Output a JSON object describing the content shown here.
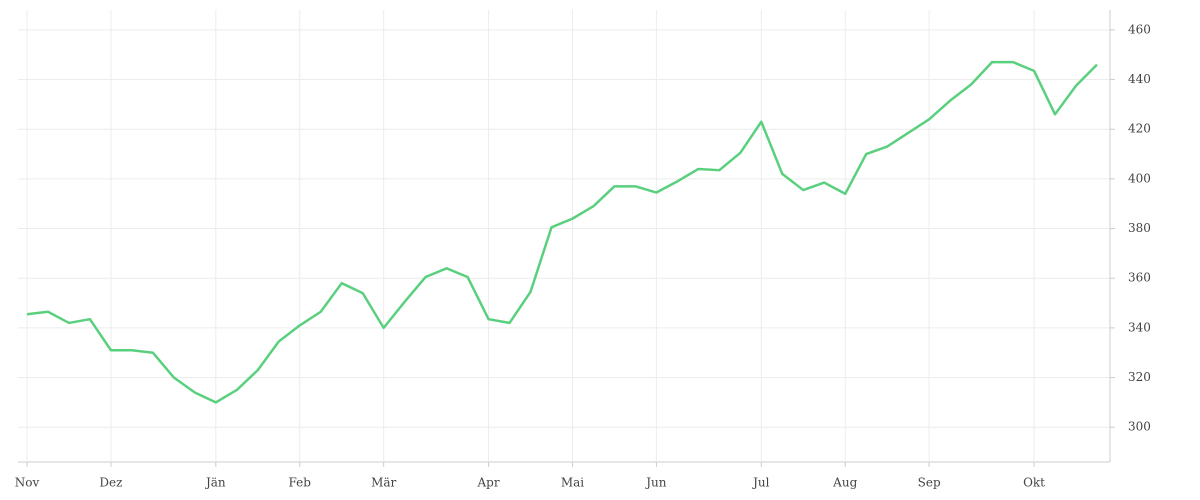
{
  "chart_data": {
    "type": "line",
    "categories": [
      "Nov",
      null,
      null,
      null,
      "Dez",
      null,
      null,
      null,
      null,
      "Jän",
      null,
      null,
      null,
      "Feb",
      null,
      null,
      null,
      "Mär",
      null,
      null,
      null,
      null,
      "Apr",
      null,
      null,
      null,
      "Mai",
      null,
      null,
      null,
      "Jun",
      null,
      null,
      null,
      null,
      "Jul",
      null,
      null,
      null,
      "Aug",
      null,
      null,
      null,
      "Sep",
      null,
      null,
      null,
      null,
      "Okt",
      null,
      null,
      null
    ],
    "values": [
      345.5,
      346.5,
      342,
      343.5,
      331,
      331,
      330,
      320,
      314,
      310,
      315,
      323,
      334.5,
      341,
      346.5,
      358,
      354,
      340,
      350.5,
      360.5,
      364,
      360.5,
      343.5,
      342,
      354.5,
      380.5,
      384,
      389,
      397,
      397,
      394.5,
      399,
      404,
      403.5,
      410.5,
      423,
      402,
      395.5,
      398.5,
      394,
      410,
      413,
      418.5,
      424,
      431.5,
      438,
      447,
      447,
      443.5,
      426,
      437.5,
      446
    ],
    "color": "#5ad07f",
    "ylim": [
      286,
      468
    ],
    "yticks": [
      300,
      320,
      340,
      360,
      380,
      400,
      420,
      440,
      460
    ],
    "grid": true
  }
}
